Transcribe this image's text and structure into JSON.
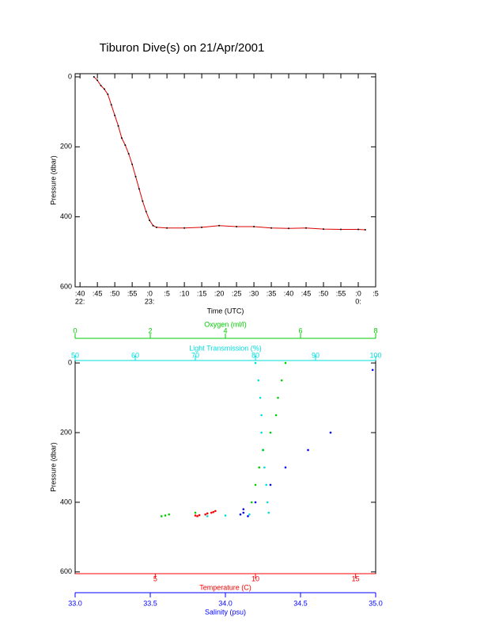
{
  "title": "Tiburon Dive(s) on 21/Apr/2001",
  "chart_data": [
    {
      "type": "line",
      "x_label": "Time (UTC)",
      "y_label": "Pressure (dbar)",
      "color": "#dd0000",
      "x": [
        44,
        45,
        46,
        47,
        48,
        49,
        50,
        51,
        52,
        53,
        54,
        55,
        56,
        57,
        58,
        59,
        60,
        61,
        62,
        65,
        70,
        75,
        80,
        85,
        90,
        95,
        100,
        105,
        110,
        115,
        120,
        122
      ],
      "values": [
        0,
        10,
        25,
        35,
        50,
        80,
        110,
        140,
        175,
        195,
        220,
        250,
        285,
        320,
        355,
        385,
        410,
        425,
        430,
        432,
        432,
        430,
        425,
        428,
        428,
        432,
        433,
        432,
        435,
        436,
        436,
        437
      ],
      "xlim": [
        38.6,
        125
      ],
      "ylim": [
        -9,
        600
      ],
      "xticks": [
        {
          "value": 40,
          "label": ":40"
        },
        {
          "value": 45,
          "label": ":45"
        },
        {
          "value": 50,
          "label": ":50"
        },
        {
          "value": 55,
          "label": ":55"
        },
        {
          "value": 60,
          "label": ":0"
        },
        {
          "value": 65,
          "label": ":5"
        },
        {
          "value": 70,
          "label": ":10"
        },
        {
          "value": 75,
          "label": ":15"
        },
        {
          "value": 80,
          "label": ":20"
        },
        {
          "value": 85,
          "label": ":25"
        },
        {
          "value": 90,
          "label": ":30"
        },
        {
          "value": 95,
          "label": ":35"
        },
        {
          "value": 100,
          "label": ":40"
        },
        {
          "value": 105,
          "label": ":45"
        },
        {
          "value": 110,
          "label": ":50"
        },
        {
          "value": 115,
          "label": ":55"
        },
        {
          "value": 120,
          "label": ":0"
        },
        {
          "value": 125,
          "label": ":5"
        }
      ],
      "hour_labels": [
        {
          "value": 40,
          "label": "22:"
        },
        {
          "value": 60,
          "label": "23:"
        },
        {
          "value": 120,
          "label": "0:"
        }
      ],
      "yticks": [
        0,
        200,
        400,
        600
      ]
    },
    {
      "type": "scatter",
      "y_label": "Pressure (dbar)",
      "ylim": [
        -7,
        605
      ],
      "yticks": [
        0,
        200,
        400,
        600
      ],
      "series": [
        {
          "name": "Temperature (C)",
          "color": "#ff0000",
          "xlim": [
            1,
            16
          ],
          "xticks": [
            5,
            10,
            15
          ],
          "pressure": [
            425,
            428,
            430,
            432,
            435,
            437,
            438,
            440
          ],
          "values": [
            8.0,
            7.9,
            7.8,
            7.6,
            7.5,
            7.2,
            7.0,
            7.1
          ]
        },
        {
          "name": "Salinity (psu)",
          "color": "#0000ff",
          "xlim": [
            33,
            35
          ],
          "xticks": [
            {
              "value": 33,
              "label": "33.0"
            },
            {
              "value": 33.5,
              "label": "33.5"
            },
            {
              "value": 34,
              "label": "34.0"
            },
            {
              "value": 34.5,
              "label": "34.5"
            },
            {
              "value": 35,
              "label": "35.0"
            }
          ],
          "pressure": [
            20,
            200,
            250,
            300,
            350,
            400,
            420,
            430,
            435,
            440
          ],
          "values": [
            34.98,
            34.7,
            34.55,
            34.4,
            34.3,
            34.2,
            34.12,
            34.12,
            34.1,
            34.15
          ]
        },
        {
          "name": "Light Transmission (%)",
          "color": "#00dddd",
          "xlim": [
            50,
            100
          ],
          "xticks": [
            50,
            60,
            70,
            80,
            90,
            100
          ],
          "pressure": [
            0,
            50,
            100,
            150,
            200,
            250,
            300,
            350,
            400,
            430,
            435,
            438,
            440
          ],
          "values": [
            80,
            80.5,
            80.8,
            81,
            81,
            81.3,
            81.5,
            81.8,
            82,
            82.2,
            79,
            75,
            72
          ]
        },
        {
          "name": "Oxygen (ml/l)",
          "color": "#00cc00",
          "xlim": [
            0,
            8
          ],
          "xticks": [
            0,
            2,
            4,
            6,
            8
          ],
          "pressure": [
            0,
            50,
            100,
            150,
            200,
            250,
            300,
            350,
            400,
            430,
            435,
            438,
            440
          ],
          "values": [
            5.6,
            5.5,
            5.4,
            5.35,
            5.2,
            5.0,
            4.9,
            4.8,
            4.7,
            3.2,
            2.5,
            2.4,
            2.3
          ]
        }
      ]
    }
  ]
}
